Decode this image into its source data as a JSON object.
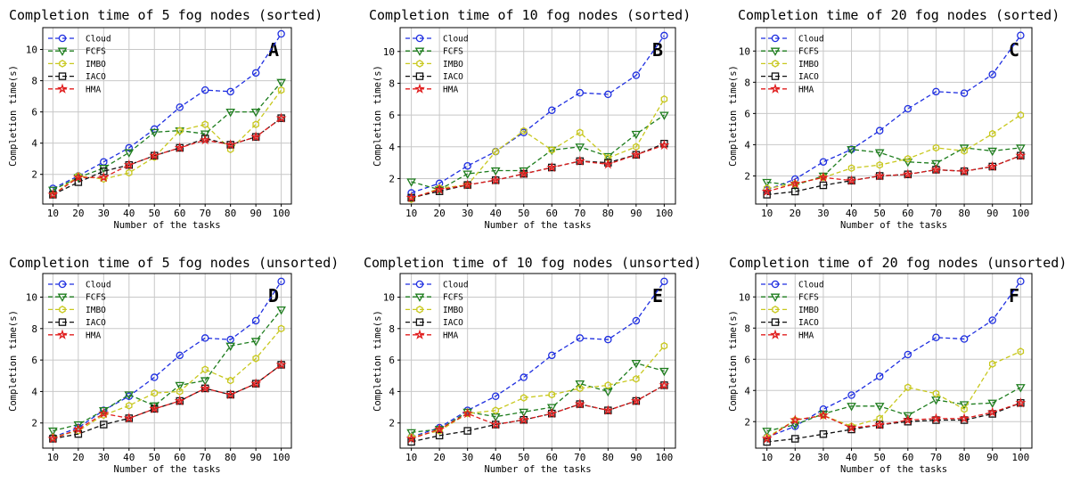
{
  "colors": {
    "Cloud": "#1f2fe0",
    "FCFS": "#1e7d1e",
    "IMBO": "#c8c81e",
    "IACO": "#111111",
    "HMA": "#e01e1e"
  },
  "markers": {
    "Cloud": "circle",
    "FCFS": "triangle-down",
    "IMBO": "hexagon",
    "IACO": "square",
    "HMA": "star"
  },
  "chart_data": [
    {
      "type": "line",
      "panel": "A",
      "title": "Completion time of 5 fog nodes (sorted)",
      "xlabel": "Number of the tasks",
      "ylabel": "Completion time(s)",
      "x": [
        10,
        20,
        30,
        40,
        50,
        60,
        70,
        80,
        90,
        100
      ],
      "yticks": [
        2,
        4,
        6,
        8,
        10
      ],
      "ylim": [
        0.1,
        11.4
      ],
      "grid": true,
      "legend": "top-left",
      "series": [
        {
          "name": "Cloud",
          "values": [
            1.1,
            1.9,
            2.8,
            3.7,
            4.9,
            6.3,
            7.4,
            7.3,
            8.5,
            11.0
          ]
        },
        {
          "name": "FCFS",
          "values": [
            1.0,
            1.8,
            2.4,
            3.4,
            4.7,
            4.8,
            4.6,
            6.0,
            6.0,
            7.9
          ]
        },
        {
          "name": "IMBO",
          "values": [
            0.7,
            1.9,
            1.7,
            2.1,
            3.1,
            4.8,
            5.2,
            3.6,
            5.2,
            7.4
          ]
        },
        {
          "name": "IACO",
          "values": [
            0.7,
            1.5,
            2.2,
            2.6,
            3.2,
            3.7,
            4.3,
            3.9,
            4.4,
            5.6
          ]
        },
        {
          "name": "HMA",
          "values": [
            0.7,
            1.8,
            1.8,
            2.6,
            3.2,
            3.7,
            4.2,
            3.9,
            4.4,
            5.6
          ]
        }
      ]
    },
    {
      "type": "line",
      "panel": "B",
      "title": "Completion time of 10 fog nodes (sorted)",
      "xlabel": "Number of the tasks",
      "ylabel": "Completion time(s)",
      "x": [
        10,
        20,
        30,
        40,
        50,
        60,
        70,
        80,
        90,
        100
      ],
      "yticks": [
        2,
        4,
        6,
        8,
        10
      ],
      "ylim": [
        0.4,
        11.5
      ],
      "grid": true,
      "legend": "top-left",
      "series": [
        {
          "name": "Cloud",
          "values": [
            1.1,
            1.7,
            2.8,
            3.7,
            4.9,
            6.3,
            7.4,
            7.3,
            8.5,
            11.0
          ]
        },
        {
          "name": "FCFS",
          "values": [
            1.8,
            1.3,
            2.3,
            2.5,
            2.5,
            3.8,
            4.0,
            3.4,
            4.8,
            6.0
          ]
        },
        {
          "name": "IMBO",
          "values": [
            0.7,
            1.4,
            1.6,
            3.7,
            5.0,
            3.8,
            4.9,
            3.3,
            4.0,
            7.0
          ]
        },
        {
          "name": "IACO",
          "values": [
            0.8,
            1.2,
            1.6,
            1.9,
            2.3,
            2.7,
            3.1,
            3.0,
            3.5,
            4.2
          ]
        },
        {
          "name": "HMA",
          "values": [
            0.8,
            1.3,
            1.6,
            1.9,
            2.3,
            2.7,
            3.1,
            2.9,
            3.5,
            4.1
          ]
        }
      ]
    },
    {
      "type": "line",
      "panel": "C",
      "title": "Completion time of 20 fog nodes (sorted)",
      "xlabel": "Number of the tasks",
      "ylabel": "Completion time(s)",
      "x": [
        10,
        20,
        30,
        40,
        50,
        60,
        70,
        80,
        90,
        100
      ],
      "yticks": [
        2,
        4,
        6,
        8,
        10
      ],
      "ylim": [
        0.2,
        11.5
      ],
      "grid": true,
      "legend": "top-left",
      "series": [
        {
          "name": "Cloud",
          "values": [
            1.1,
            1.8,
            2.9,
            3.7,
            4.9,
            6.3,
            7.4,
            7.3,
            8.5,
            11.0
          ]
        },
        {
          "name": "FCFS",
          "values": [
            1.6,
            1.4,
            2.0,
            3.7,
            3.5,
            2.9,
            2.8,
            3.8,
            3.6,
            3.8
          ]
        },
        {
          "name": "IMBO",
          "values": [
            1.2,
            1.5,
            1.9,
            2.5,
            2.7,
            3.1,
            3.8,
            3.6,
            4.7,
            5.9
          ]
        },
        {
          "name": "IACO",
          "values": [
            0.8,
            1.0,
            1.4,
            1.7,
            2.0,
            2.1,
            2.4,
            2.3,
            2.6,
            3.3
          ]
        },
        {
          "name": "HMA",
          "values": [
            1.0,
            1.5,
            1.9,
            1.7,
            2.0,
            2.1,
            2.4,
            2.3,
            2.6,
            3.3
          ]
        }
      ]
    },
    {
      "type": "line",
      "panel": "D",
      "title": "Completion time of 5 fog nodes (unsorted)",
      "xlabel": "Number of the tasks",
      "ylabel": "Completion time(s)",
      "x": [
        10,
        20,
        30,
        40,
        50,
        60,
        70,
        80,
        90,
        100
      ],
      "yticks": [
        2,
        4,
        6,
        8,
        10
      ],
      "ylim": [
        0.4,
        11.5
      ],
      "grid": true,
      "legend": "top-left",
      "series": [
        {
          "name": "Cloud",
          "values": [
            1.1,
            1.7,
            2.8,
            3.7,
            4.9,
            6.3,
            7.4,
            7.3,
            8.5,
            11.0
          ]
        },
        {
          "name": "FCFS",
          "values": [
            1.5,
            1.9,
            2.8,
            3.8,
            3.1,
            4.4,
            4.7,
            6.9,
            7.2,
            9.2
          ]
        },
        {
          "name": "IMBO",
          "values": [
            1.1,
            1.5,
            2.5,
            3.1,
            3.9,
            4.0,
            5.4,
            4.7,
            6.1,
            8.0
          ]
        },
        {
          "name": "IACO",
          "values": [
            1.0,
            1.3,
            1.9,
            2.3,
            2.9,
            3.4,
            4.2,
            3.8,
            4.5,
            5.7
          ]
        },
        {
          "name": "HMA",
          "values": [
            1.0,
            1.6,
            2.6,
            2.3,
            2.9,
            3.4,
            4.2,
            3.8,
            4.5,
            5.7
          ]
        }
      ]
    },
    {
      "type": "line",
      "panel": "E",
      "title": "Completion time of 10 fog nodes (unsorted)",
      "xlabel": "Number of the tasks",
      "ylabel": "Completion time(s)",
      "x": [
        10,
        20,
        30,
        40,
        50,
        60,
        70,
        80,
        90,
        100
      ],
      "yticks": [
        2,
        4,
        6,
        8,
        10
      ],
      "ylim": [
        0.4,
        11.5
      ],
      "grid": true,
      "legend": "top-left",
      "series": [
        {
          "name": "Cloud",
          "values": [
            1.1,
            1.7,
            2.8,
            3.7,
            4.9,
            6.3,
            7.4,
            7.3,
            8.5,
            11.0
          ]
        },
        {
          "name": "FCFS",
          "values": [
            1.4,
            1.6,
            2.7,
            2.4,
            2.7,
            3.0,
            4.5,
            4.0,
            5.8,
            5.3
          ]
        },
        {
          "name": "IMBO",
          "values": [
            1.1,
            1.5,
            2.6,
            2.8,
            3.6,
            3.8,
            4.2,
            4.4,
            4.8,
            6.9
          ]
        },
        {
          "name": "IACO",
          "values": [
            0.8,
            1.2,
            1.5,
            1.9,
            2.2,
            2.6,
            3.2,
            2.8,
            3.4,
            4.4
          ]
        },
        {
          "name": "HMA",
          "values": [
            1.0,
            1.6,
            2.6,
            1.9,
            2.2,
            2.6,
            3.2,
            2.8,
            3.4,
            4.4
          ]
        }
      ]
    },
    {
      "type": "line",
      "panel": "F",
      "title": "Completion time of 20 fog nodes (unsorted)",
      "xlabel": "Number of the tasks",
      "ylabel": "Completion time(s)",
      "x": [
        10,
        20,
        30,
        40,
        50,
        60,
        70,
        80,
        90,
        100
      ],
      "yticks": [
        2,
        4,
        6,
        8,
        10
      ],
      "ylim": [
        0.3,
        11.5
      ],
      "grid": true,
      "legend": "top-left",
      "series": [
        {
          "name": "Cloud",
          "values": [
            1.0,
            1.7,
            2.8,
            3.7,
            4.9,
            6.3,
            7.4,
            7.3,
            8.5,
            11.0
          ]
        },
        {
          "name": "FCFS",
          "values": [
            1.4,
            1.8,
            2.5,
            3.0,
            3.0,
            2.4,
            3.4,
            3.1,
            3.2,
            4.2
          ]
        },
        {
          "name": "IMBO",
          "values": [
            1.0,
            2.1,
            2.4,
            1.7,
            2.2,
            4.2,
            3.8,
            2.8,
            5.7,
            6.5
          ]
        },
        {
          "name": "IACO",
          "values": [
            0.7,
            0.9,
            1.2,
            1.5,
            1.8,
            2.0,
            2.1,
            2.1,
            2.5,
            3.2
          ]
        },
        {
          "name": "HMA",
          "values": [
            0.9,
            2.1,
            2.4,
            1.6,
            1.8,
            2.1,
            2.2,
            2.2,
            2.6,
            3.2
          ]
        }
      ]
    }
  ]
}
